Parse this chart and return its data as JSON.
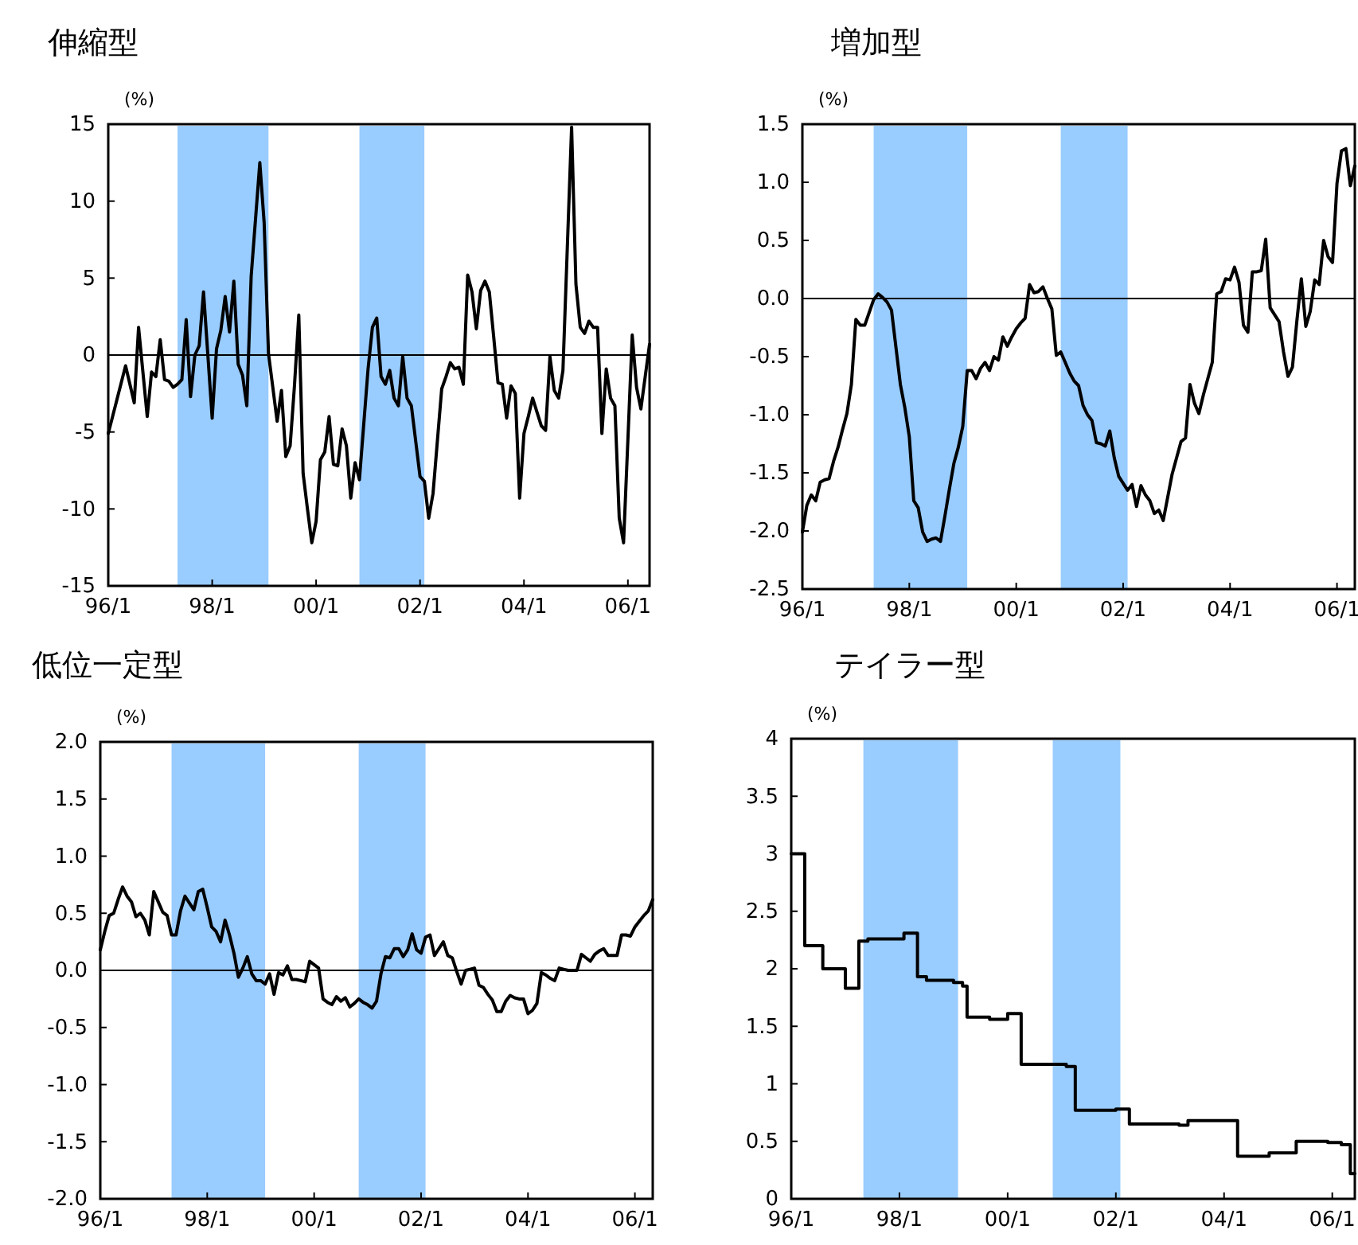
{
  "chart_data": [
    {
      "type": "line",
      "title": "伸縮型",
      "ylabel": "(%)",
      "color": "#000000",
      "categories": [
        "96/1",
        null,
        null,
        null,
        null,
        null,
        null,
        null,
        null,
        null,
        null,
        null,
        null,
        null,
        null,
        null,
        null,
        null,
        null,
        null,
        null,
        null,
        null,
        null,
        "98/1",
        null,
        null,
        null,
        null,
        null,
        null,
        null,
        null,
        null,
        null,
        null,
        null,
        null,
        null,
        null,
        null,
        null,
        null,
        null,
        null,
        null,
        null,
        null,
        "00/1",
        null,
        null,
        null,
        null,
        null,
        null,
        null,
        null,
        null,
        null,
        null,
        null,
        null,
        null,
        null,
        null,
        null,
        null,
        null,
        null,
        null,
        null,
        null,
        "02/1",
        null,
        null,
        null,
        null,
        null,
        null,
        null,
        null,
        null,
        null,
        null,
        null,
        null,
        null,
        null,
        null,
        null,
        null,
        null,
        null,
        null,
        null,
        null,
        "04/1",
        null,
        null,
        null,
        null,
        null,
        null,
        null,
        null,
        null,
        null,
        null,
        null,
        null,
        null,
        null,
        null,
        null,
        null,
        null,
        null,
        null,
        null,
        null,
        "06/1",
        null,
        null,
        null,
        null,
        null
      ],
      "values": [
        -5.1,
        -4.0,
        -2.9,
        -1.8,
        -0.7,
        -1.9,
        -3.1,
        1.8,
        -1.1,
        -4.0,
        -1.1,
        -1.4,
        1.0,
        -1.6,
        -1.7,
        -2.1,
        -1.9,
        -1.6,
        2.3,
        -2.7,
        0,
        0.6,
        4.1,
        0,
        -4.1,
        0.4,
        1.6,
        3.8,
        1.5,
        4.8,
        -0.6,
        -1.3,
        -3.3,
        5.1,
        8.8,
        12.5,
        8.6,
        0.1,
        -2.1,
        -4.3,
        -2.3,
        -6.6,
        -5.9,
        -2.0,
        2.6,
        -7.7,
        -10.0,
        -12.2,
        -10.8,
        -6.8,
        -6.3,
        -4.0,
        -7.1,
        -7.2,
        -4.8,
        -5.9,
        -9.3,
        -7.0,
        -8.1,
        -4.5,
        -0.9,
        1.8,
        2.4,
        -1.4,
        -1.9,
        -1.0,
        -2.8,
        -3.3,
        -0.1,
        -2.8,
        -3.3,
        -5.6,
        -7.9,
        -8.2,
        -10.6,
        -9.0,
        -5.6,
        -2.2,
        -1.4,
        -0.5,
        -0.9,
        -0.8,
        -1.9,
        5.2,
        4.1,
        1.7,
        4.2,
        4.8,
        4.1,
        1.2,
        -1.8,
        -1.9,
        -4.1,
        -2.0,
        -2.5,
        -9.3,
        -5.1,
        -4.0,
        -2.8,
        -3.7,
        -4.6,
        -4.9,
        -0.1,
        -2.3,
        -2.8,
        -1.0,
        6.9,
        14.8,
        4.6,
        1.8,
        1.4,
        2.2,
        1.8,
        1.8,
        -5.1,
        -0.9,
        -2.8,
        -3.3,
        -10.6,
        -12.2,
        -5.5,
        1.3,
        -2.1,
        -3.5,
        -1.4,
        0.7
      ],
      "ylim": [
        -15,
        15
      ],
      "yticks": [
        -15,
        -10,
        -5,
        0,
        5,
        10,
        15
      ],
      "ref_lines": [
        {
          "axis": "y",
          "value": 0
        }
      ]
    },
    {
      "type": "line",
      "title": "増加型",
      "ylabel": "(%)",
      "color": "#000000",
      "categories": [
        "96/1",
        null,
        null,
        null,
        null,
        null,
        null,
        null,
        null,
        null,
        null,
        null,
        null,
        null,
        null,
        null,
        null,
        null,
        null,
        null,
        null,
        null,
        null,
        null,
        "98/1",
        null,
        null,
        null,
        null,
        null,
        null,
        null,
        null,
        null,
        null,
        null,
        null,
        null,
        null,
        null,
        null,
        null,
        null,
        null,
        null,
        null,
        null,
        null,
        "00/1",
        null,
        null,
        null,
        null,
        null,
        null,
        null,
        null,
        null,
        null,
        null,
        null,
        null,
        null,
        null,
        null,
        null,
        null,
        null,
        null,
        null,
        null,
        null,
        "02/1",
        null,
        null,
        null,
        null,
        null,
        null,
        null,
        null,
        null,
        null,
        null,
        null,
        null,
        null,
        null,
        null,
        null,
        null,
        null,
        null,
        null,
        null,
        null,
        "04/1",
        null,
        null,
        null,
        null,
        null,
        null,
        null,
        null,
        null,
        null,
        null,
        null,
        null,
        null,
        null,
        null,
        null,
        null,
        null,
        null,
        null,
        null,
        null,
        "06/1",
        null,
        null,
        null,
        null
      ],
      "values": [
        -2.01,
        -1.78,
        -1.69,
        -1.74,
        -1.58,
        -1.56,
        -1.55,
        -1.4,
        -1.28,
        -1.13,
        -0.99,
        -0.74,
        -0.18,
        -0.23,
        -0.23,
        -0.12,
        -0.01,
        0.04,
        0.01,
        -0.03,
        -0.1,
        -0.42,
        -0.74,
        -0.94,
        -1.19,
        -1.74,
        -1.8,
        -2.01,
        -2.09,
        -2.07,
        -2.06,
        -2.09,
        -1.87,
        -1.64,
        -1.42,
        -1.28,
        -1.1,
        -0.62,
        -0.62,
        -0.69,
        -0.6,
        -0.55,
        -0.62,
        -0.5,
        -0.53,
        -0.33,
        -0.41,
        -0.33,
        -0.26,
        -0.21,
        -0.17,
        0.12,
        0.05,
        0.06,
        0.1,
        0.0,
        -0.09,
        -0.49,
        -0.46,
        -0.55,
        -0.64,
        -0.71,
        -0.75,
        -0.92,
        -1.0,
        -1.05,
        -1.24,
        -1.25,
        -1.27,
        -1.14,
        -1.37,
        -1.53,
        -1.59,
        -1.65,
        -1.6,
        -1.79,
        -1.61,
        -1.69,
        -1.74,
        -1.85,
        -1.82,
        -1.91,
        -1.71,
        -1.51,
        -1.37,
        -1.23,
        -1.2,
        -0.74,
        -0.9,
        -0.99,
        -0.83,
        -0.69,
        -0.55,
        0.04,
        0.06,
        0.17,
        0.16,
        0.27,
        0.14,
        -0.23,
        -0.29,
        0.23,
        0.23,
        0.24,
        0.51,
        -0.08,
        -0.14,
        -0.2,
        -0.46,
        -0.67,
        -0.59,
        -0.19,
        0.17,
        -0.24,
        -0.11,
        0.16,
        0.12,
        0.5,
        0.36,
        0.31,
        0.99,
        1.27,
        1.29,
        0.97,
        1.14
      ],
      "ylim": [
        -2.5,
        1.5
      ],
      "yticks": [
        {
          "value": -2.5,
          "label": "-2.5"
        },
        {
          "value": -2,
          "label": "-2.0"
        },
        {
          "value": -1.5,
          "label": "-1.5"
        },
        {
          "value": -1,
          "label": "-1.0"
        },
        {
          "value": -0.5,
          "label": "-0.5"
        },
        {
          "value": 0,
          "label": "0.0"
        },
        {
          "value": 0.5,
          "label": "0.5"
        },
        {
          "value": 1,
          "label": "1.0"
        },
        {
          "value": 1.5,
          "label": "1.5"
        }
      ],
      "ref_lines": [
        {
          "axis": "y",
          "value": 0
        }
      ]
    },
    {
      "type": "line",
      "title": "低位一定型",
      "ylabel": "(%)",
      "color": "#000000",
      "categories": [
        "96/1",
        null,
        null,
        null,
        null,
        null,
        null,
        null,
        null,
        null,
        null,
        null,
        null,
        null,
        null,
        null,
        null,
        null,
        null,
        null,
        null,
        null,
        null,
        null,
        "98/1",
        null,
        null,
        null,
        null,
        null,
        null,
        null,
        null,
        null,
        null,
        null,
        null,
        null,
        null,
        null,
        null,
        null,
        null,
        null,
        null,
        null,
        null,
        null,
        "00/1",
        null,
        null,
        null,
        null,
        null,
        null,
        null,
        null,
        null,
        null,
        null,
        null,
        null,
        null,
        null,
        null,
        null,
        null,
        null,
        null,
        null,
        null,
        null,
        "02/1",
        null,
        null,
        null,
        null,
        null,
        null,
        null,
        null,
        null,
        null,
        null,
        null,
        null,
        null,
        null,
        null,
        null,
        null,
        null,
        null,
        null,
        null,
        null,
        "04/1",
        null,
        null,
        null,
        null,
        null,
        null,
        null,
        null,
        null,
        null,
        null,
        null,
        null,
        null,
        null,
        null,
        null,
        null,
        null,
        null,
        null,
        null,
        null,
        "06/1",
        null,
        null,
        null,
        null
      ],
      "values": [
        0.18,
        0.34,
        0.48,
        0.5,
        0.62,
        0.73,
        0.65,
        0.6,
        0.47,
        0.5,
        0.44,
        0.31,
        0.69,
        0.6,
        0.51,
        0.48,
        0.31,
        0.31,
        0.52,
        0.65,
        0.59,
        0.53,
        0.69,
        0.71,
        0.55,
        0.38,
        0.34,
        0.25,
        0.44,
        0.31,
        0.15,
        -0.06,
        0.02,
        0.12,
        -0.03,
        -0.09,
        -0.09,
        -0.12,
        -0.03,
        -0.21,
        -0.02,
        -0.04,
        0.04,
        -0.08,
        -0.08,
        -0.09,
        -0.1,
        0.08,
        0.05,
        0.02,
        -0.25,
        -0.28,
        -0.3,
        -0.23,
        -0.27,
        -0.24,
        -0.32,
        -0.29,
        -0.25,
        -0.28,
        -0.3,
        -0.33,
        -0.27,
        -0.03,
        0.12,
        0.11,
        0.19,
        0.19,
        0.12,
        0.18,
        0.32,
        0.18,
        0.15,
        0.29,
        0.31,
        0.13,
        0.19,
        0.25,
        0.13,
        0.11,
        -0.01,
        -0.12,
        0.0,
        0.01,
        0.02,
        -0.13,
        -0.15,
        -0.21,
        -0.26,
        -0.36,
        -0.36,
        -0.27,
        -0.22,
        -0.24,
        -0.25,
        -0.25,
        -0.38,
        -0.35,
        -0.29,
        -0.02,
        -0.04,
        -0.07,
        -0.09,
        0.02,
        0.01,
        0.0,
        0.0,
        0.0,
        0.14,
        0.11,
        0.08,
        0.14,
        0.17,
        0.19,
        0.13,
        0.13,
        0.13,
        0.31,
        0.31,
        0.3,
        0.38,
        0.43,
        0.48,
        0.52,
        0.62
      ],
      "ylim": [
        -2,
        2
      ],
      "yticks": [
        {
          "value": -2,
          "label": "-2.0"
        },
        {
          "value": -1.5,
          "label": "-1.5"
        },
        {
          "value": -1,
          "label": "-1.0"
        },
        {
          "value": -0.5,
          "label": "-0.5"
        },
        {
          "value": 0,
          "label": "0.0"
        },
        {
          "value": 0.5,
          "label": "0.5"
        },
        {
          "value": 1,
          "label": "1.0"
        },
        {
          "value": 1.5,
          "label": "1.5"
        },
        {
          "value": 2,
          "label": "2.0"
        }
      ],
      "ref_lines": [
        {
          "axis": "y",
          "value": 0
        }
      ]
    },
    {
      "type": "step",
      "title": "テイラー型",
      "ylabel": "(%)",
      "color": "#000000",
      "categories": [
        "96/1",
        null,
        null,
        null,
        null,
        null,
        null,
        null,
        null,
        null,
        null,
        null,
        null,
        null,
        null,
        null,
        null,
        null,
        null,
        null,
        null,
        null,
        null,
        null,
        "98/1",
        null,
        null,
        null,
        null,
        null,
        null,
        null,
        null,
        null,
        null,
        null,
        null,
        null,
        null,
        null,
        null,
        null,
        null,
        null,
        null,
        null,
        null,
        null,
        "00/1",
        null,
        null,
        null,
        null,
        null,
        null,
        null,
        null,
        null,
        null,
        null,
        null,
        null,
        null,
        null,
        null,
        null,
        null,
        null,
        null,
        null,
        null,
        null,
        "02/1",
        null,
        null,
        null,
        null,
        null,
        null,
        null,
        null,
        null,
        null,
        null,
        null,
        null,
        null,
        null,
        null,
        null,
        null,
        null,
        null,
        null,
        null,
        null,
        "04/1",
        null,
        null,
        null,
        null,
        null,
        null,
        null,
        null,
        null,
        null,
        null,
        null,
        null,
        null,
        null,
        null,
        null,
        null,
        null,
        null,
        null,
        null,
        null,
        "06/1",
        null,
        null,
        null,
        null,
        null
      ],
      "values": [
        3.0,
        3.0,
        3.0,
        2.2,
        2.2,
        2.2,
        2.2,
        2.0,
        2.0,
        2.0,
        2.0,
        2.0,
        1.83,
        1.83,
        1.83,
        2.24,
        2.24,
        2.26,
        2.26,
        2.26,
        2.26,
        2.26,
        2.26,
        2.26,
        2.26,
        2.31,
        2.31,
        2.31,
        1.93,
        1.93,
        1.9,
        1.9,
        1.9,
        1.9,
        1.9,
        1.9,
        1.88,
        1.88,
        1.85,
        1.58,
        1.58,
        1.58,
        1.58,
        1.58,
        1.56,
        1.56,
        1.56,
        1.56,
        1.61,
        1.61,
        1.61,
        1.17,
        1.17,
        1.17,
        1.17,
        1.17,
        1.17,
        1.17,
        1.17,
        1.17,
        1.17,
        1.15,
        1.15,
        0.77,
        0.77,
        0.77,
        0.77,
        0.77,
        0.77,
        0.77,
        0.77,
        0.77,
        0.78,
        0.78,
        0.78,
        0.65,
        0.65,
        0.65,
        0.65,
        0.65,
        0.65,
        0.65,
        0.65,
        0.65,
        0.65,
        0.65,
        0.64,
        0.64,
        0.68,
        0.68,
        0.68,
        0.68,
        0.68,
        0.68,
        0.68,
        0.68,
        0.68,
        0.68,
        0.68,
        0.37,
        0.37,
        0.37,
        0.37,
        0.37,
        0.37,
        0.37,
        0.4,
        0.4,
        0.4,
        0.4,
        0.4,
        0.4,
        0.5,
        0.5,
        0.5,
        0.5,
        0.5,
        0.5,
        0.5,
        0.49,
        0.49,
        0.49,
        0.47,
        0.47,
        0.22,
        0.22
      ],
      "ylim": [
        0,
        4
      ],
      "yticks": [
        0,
        0.5,
        1,
        1.5,
        2,
        2.5,
        3,
        3.5,
        4
      ]
    }
  ]
}
